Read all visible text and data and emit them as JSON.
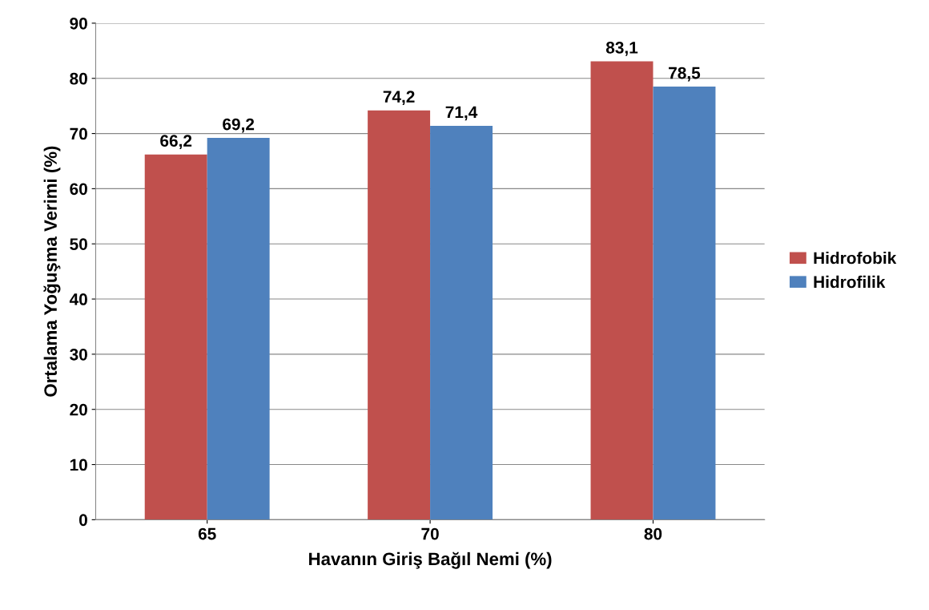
{
  "chart_data": {
    "type": "bar",
    "xlabel": "Havanın Giriş Bağıl Nemi (%)",
    "ylabel": "Ortalama Yoğuşma Verimi (%)",
    "categories": [
      "65",
      "70",
      "80"
    ],
    "series": [
      {
        "name": "Hidrofobik",
        "color": "#c0504d",
        "values": [
          66.2,
          74.2,
          83.1
        ],
        "value_labels": [
          "66,2",
          "74,2",
          "83,1"
        ]
      },
      {
        "name": "Hidrofilik",
        "color": "#4f81bd",
        "values": [
          69.2,
          71.4,
          78.5
        ],
        "value_labels": [
          "69,2",
          "71,4",
          "78,5"
        ]
      }
    ],
    "ylim": [
      0,
      90
    ],
    "yticks": [
      0,
      10,
      20,
      30,
      40,
      50,
      60,
      70,
      80,
      90
    ],
    "grid": "y",
    "legend": "right"
  }
}
